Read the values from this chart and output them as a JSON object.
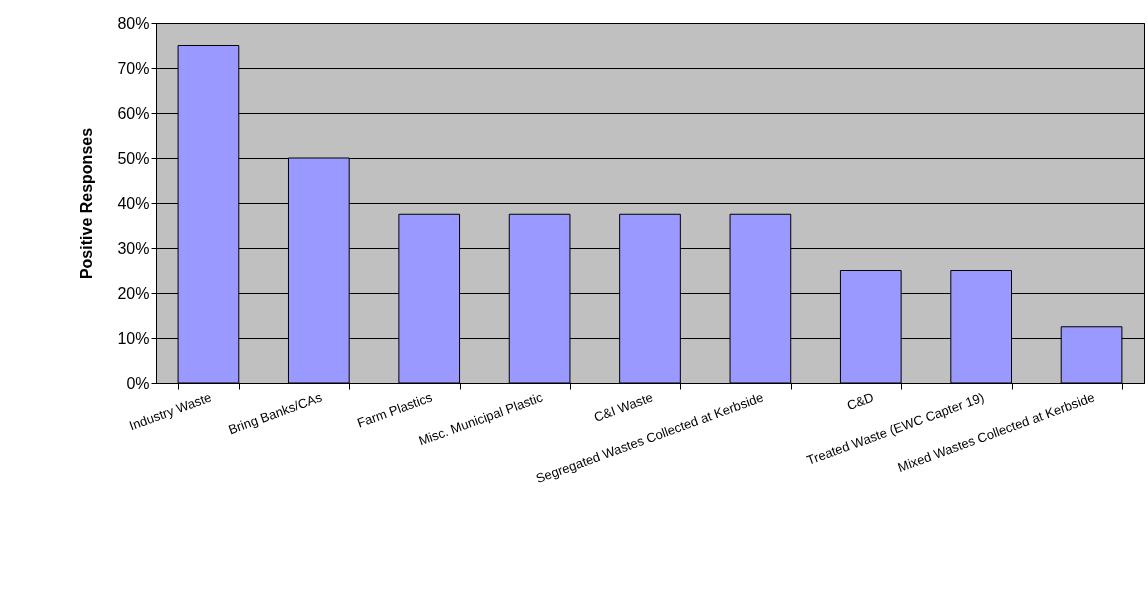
{
  "chart_data": {
    "type": "bar",
    "ylabel": "Positive Responses",
    "categories": [
      "Industry Waste",
      "Bring Banks/CAs",
      "Farm Plastics",
      "Misc. Municipal Plastic",
      "C&I Waste",
      "Segregated Wastes Collected at Kerbside",
      "C&D",
      "Treated Waste (EWC Capter 19)",
      "Mixed Wastes Collected at Kerbside"
    ],
    "values": [
      75,
      50,
      37.5,
      37.5,
      37.5,
      37.5,
      25,
      25,
      12.5
    ],
    "color": "#9999ff",
    "ylim": [
      0,
      80
    ],
    "yticks": [
      {
        "value": 0,
        "label": "0%"
      },
      {
        "value": 10,
        "label": "10%"
      },
      {
        "value": 20,
        "label": "20%"
      },
      {
        "value": 30,
        "label": "30%"
      },
      {
        "value": 40,
        "label": "40%"
      },
      {
        "value": 50,
        "label": "50%"
      },
      {
        "value": 60,
        "label": "60%"
      },
      {
        "value": 70,
        "label": "70%"
      },
      {
        "value": 80,
        "label": "80%"
      }
    ],
    "grid": "y"
  }
}
